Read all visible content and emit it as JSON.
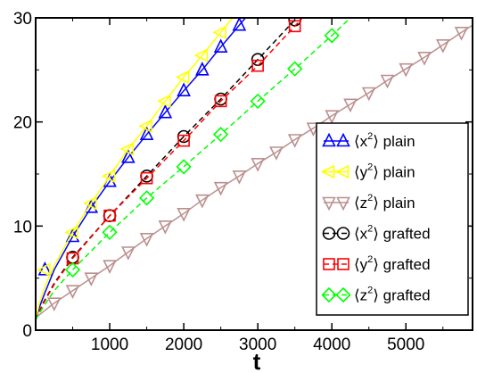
{
  "chart_data": {
    "type": "line",
    "title": "",
    "xlabel": "t",
    "ylabel": "",
    "xlim": [
      0,
      5900
    ],
    "ylim": [
      0,
      30
    ],
    "xticks": [
      1000,
      2000,
      3000,
      4000,
      5000
    ],
    "yticks": [
      0,
      10,
      20,
      30
    ],
    "grid": false,
    "legend_position": "right",
    "series": [
      {
        "name": "⟨x²⟩ plain",
        "name_parts": [
          "⟨x",
          "2",
          "⟩ plain"
        ],
        "color": "#0000ff",
        "marker": "triangle-up",
        "line": "solid",
        "line_x": [
          0,
          50,
          125,
          250,
          500,
          750,
          1000,
          1250,
          1500,
          1750,
          2000,
          2250,
          2500,
          2750,
          3000
        ],
        "line_y": [
          1.0,
          2.2,
          3.6,
          5.8,
          9.0,
          11.8,
          14.3,
          16.6,
          18.8,
          20.9,
          23.0,
          25.0,
          27.2,
          29.3,
          31.4
        ],
        "x": [
          125,
          500,
          750,
          1000,
          1250,
          1500,
          1750,
          2000,
          2250,
          2500,
          2750
        ],
        "y": [
          5.8,
          9.0,
          11.8,
          14.3,
          16.6,
          18.8,
          20.9,
          23.0,
          25.0,
          27.2,
          29.3
        ]
      },
      {
        "name": "⟨y²⟩ plain",
        "name_parts": [
          "⟨y",
          "2",
          "⟩ plain"
        ],
        "color": "#ffff00",
        "marker": "triangle-left",
        "line": "solid",
        "line_x": [
          0,
          50,
          125,
          250,
          500,
          750,
          1000,
          1250,
          1500,
          1750,
          2000,
          2250,
          2500,
          2750
        ],
        "line_y": [
          1.0,
          2.6,
          4.2,
          6.2,
          9.4,
          12.2,
          14.8,
          17.4,
          19.6,
          22.0,
          24.3,
          26.4,
          28.6,
          30.8
        ],
        "x": [
          125,
          500,
          750,
          1000,
          1250,
          1500,
          1750,
          2000,
          2250,
          2500
        ],
        "y": [
          5.8,
          9.4,
          12.2,
          14.8,
          17.4,
          19.6,
          22.0,
          24.3,
          26.4,
          28.6
        ]
      },
      {
        "name": "⟨z²⟩ plain",
        "name_parts": [
          "⟨z",
          "2",
          "⟩ plain"
        ],
        "color": "#bc8f8f",
        "marker": "triangle-down",
        "line": "solid",
        "line_x": [
          0,
          250,
          500,
          750,
          1000,
          1250,
          1500,
          1750,
          2000,
          2250,
          2500,
          2750,
          3000,
          3250,
          3500,
          3750,
          4000,
          4250,
          4500,
          4750,
          5000,
          5250,
          5500,
          5750,
          5900
        ],
        "line_y": [
          1.2,
          2.6,
          3.8,
          5.0,
          6.2,
          7.5,
          8.8,
          10.0,
          11.2,
          12.5,
          13.7,
          14.8,
          16.0,
          17.1,
          18.3,
          19.4,
          20.6,
          21.7,
          22.8,
          24.0,
          25.1,
          26.2,
          27.4,
          28.6,
          29.3
        ],
        "x": [
          250,
          500,
          750,
          1000,
          1250,
          1500,
          1750,
          2000,
          2250,
          2500,
          2750,
          3000,
          3250,
          3500,
          3750,
          4000,
          4250,
          4500,
          4750,
          5000,
          5250,
          5500,
          5750
        ],
        "y": [
          2.6,
          3.8,
          5.0,
          6.2,
          7.5,
          8.8,
          10.0,
          11.2,
          12.5,
          13.7,
          14.8,
          16.0,
          17.1,
          18.3,
          19.4,
          20.6,
          21.7,
          22.8,
          24.0,
          25.1,
          26.2,
          27.4,
          28.6
        ]
      },
      {
        "name": "⟨x²⟩ grafted",
        "name_parts": [
          "⟨x",
          "2",
          "⟩ grafted"
        ],
        "color": "#000000",
        "marker": "circle",
        "line": "dashed",
        "line_x": [
          0,
          100,
          250,
          500,
          1000,
          1500,
          2000,
          2500,
          3000,
          3500,
          3600
        ],
        "line_y": [
          1.0,
          2.6,
          4.5,
          7.0,
          11.0,
          14.8,
          18.6,
          22.2,
          26.0,
          29.8,
          30.5
        ],
        "x": [
          500,
          1000,
          1500,
          2000,
          2500,
          3000,
          3500
        ],
        "y": [
          7.0,
          11.0,
          14.8,
          18.6,
          22.2,
          26.0,
          29.8
        ]
      },
      {
        "name": "⟨y²⟩ grafted",
        "name_parts": [
          "⟨y",
          "2",
          "⟩ grafted"
        ],
        "color": "#ff0000",
        "marker": "square",
        "line": "dashed",
        "line_x": [
          0,
          100,
          250,
          500,
          1000,
          1500,
          2000,
          2500,
          3000,
          3500,
          3600
        ],
        "line_y": [
          1.0,
          2.5,
          4.4,
          6.9,
          11.0,
          14.6,
          18.2,
          22.0,
          25.4,
          29.2,
          30.0
        ],
        "x": [
          500,
          1000,
          1500,
          2000,
          2500,
          3000,
          3500
        ],
        "y": [
          6.9,
          11.0,
          14.6,
          18.2,
          22.0,
          25.4,
          29.2
        ]
      },
      {
        "name": "⟨z²⟩ grafted",
        "name_parts": [
          "⟨z",
          "2",
          "⟩ grafted"
        ],
        "color": "#00ff00",
        "marker": "diamond",
        "line": "dashed",
        "line_x": [
          0,
          100,
          250,
          500,
          1000,
          1500,
          2000,
          2500,
          3000,
          3500,
          4000,
          4250
        ],
        "line_y": [
          1.0,
          2.2,
          3.8,
          5.8,
          9.4,
          12.7,
          15.7,
          18.8,
          22.0,
          25.1,
          28.3,
          30.0
        ],
        "x": [
          500,
          1000,
          1500,
          2000,
          2500,
          3000,
          3500,
          4000
        ],
        "y": [
          5.8,
          9.4,
          12.7,
          15.7,
          18.8,
          22.0,
          25.1,
          28.3
        ]
      }
    ]
  }
}
